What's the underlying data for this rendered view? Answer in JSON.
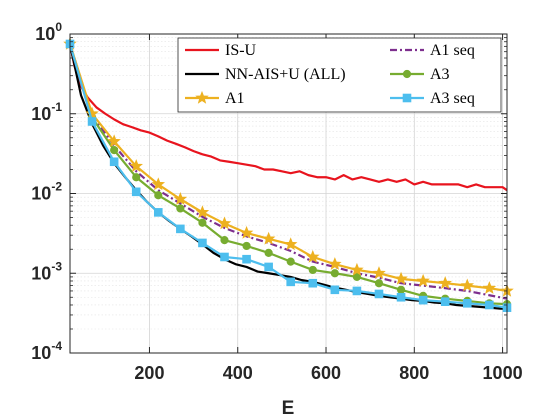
{
  "chart_data": {
    "type": "line",
    "xlabel": "E",
    "ylabel": "",
    "xlim": [
      20,
      1010
    ],
    "ylim": [
      0.0001,
      1
    ],
    "yscale": "log",
    "grid": true,
    "legend_position": "top-right",
    "x_ticks": [
      200,
      400,
      600,
      800,
      1000
    ],
    "x_tick_labels": [
      "200",
      "400",
      "600",
      "800",
      "1000"
    ],
    "y_ticks": [
      0.0001,
      0.001,
      0.01,
      0.1,
      1
    ],
    "y_tick_labels": [
      {
        "base": "10",
        "exp": "-4"
      },
      {
        "base": "10",
        "exp": "-3"
      },
      {
        "base": "10",
        "exp": "-2"
      },
      {
        "base": "10",
        "exp": "-1"
      },
      {
        "base": "10",
        "exp": "0"
      }
    ],
    "series": [
      {
        "name": "IS-U",
        "color": "#e8141e",
        "marker": "none",
        "x": [
          20,
          30,
          45,
          60,
          80,
          100,
          120,
          140,
          160,
          180,
          200,
          220,
          240,
          260,
          280,
          300,
          320,
          340,
          360,
          380,
          400,
          420,
          440,
          460,
          480,
          500,
          520,
          540,
          560,
          580,
          600,
          620,
          640,
          660,
          680,
          700,
          720,
          740,
          760,
          780,
          800,
          820,
          840,
          860,
          880,
          900,
          920,
          940,
          960,
          980,
          1000,
          1010
        ],
        "y": [
          0.75,
          0.4,
          0.22,
          0.16,
          0.12,
          0.1,
          0.085,
          0.074,
          0.068,
          0.062,
          0.058,
          0.052,
          0.046,
          0.042,
          0.038,
          0.034,
          0.031,
          0.029,
          0.026,
          0.025,
          0.024,
          0.023,
          0.022,
          0.02,
          0.02,
          0.019,
          0.018,
          0.019,
          0.017,
          0.016,
          0.016,
          0.015,
          0.017,
          0.015,
          0.016,
          0.015,
          0.014,
          0.015,
          0.014,
          0.015,
          0.013,
          0.014,
          0.013,
          0.013,
          0.013,
          0.013,
          0.012,
          0.013,
          0.012,
          0.012,
          0.012,
          0.011
        ]
      },
      {
        "name": "NN-AIS+U (ALL)",
        "color": "#000000",
        "marker": "none",
        "x": [
          20,
          45,
          70,
          95,
          120,
          145,
          170,
          195,
          220,
          245,
          270,
          295,
          320,
          345,
          370,
          395,
          420,
          445,
          470,
          495,
          520,
          545,
          570,
          595,
          620,
          645,
          670,
          695,
          720,
          745,
          770,
          795,
          820,
          845,
          870,
          895,
          920,
          945,
          970,
          995,
          1010
        ],
        "y": [
          0.75,
          0.17,
          0.075,
          0.04,
          0.024,
          0.016,
          0.011,
          0.0078,
          0.0058,
          0.0045,
          0.0036,
          0.0029,
          0.0023,
          0.0018,
          0.0015,
          0.0013,
          0.0012,
          0.00105,
          0.001,
          0.00095,
          0.0009,
          0.00082,
          0.00078,
          0.00072,
          0.00066,
          0.00062,
          0.00058,
          0.00055,
          0.00052,
          0.0005,
          0.00048,
          0.00046,
          0.00045,
          0.00043,
          0.00042,
          0.0004,
          0.00039,
          0.00038,
          0.00037,
          0.00036,
          0.00036
        ]
      },
      {
        "name": "A1",
        "color": "#edb120",
        "marker": "star",
        "x": [
          20,
          70,
          120,
          170,
          220,
          270,
          320,
          370,
          420,
          470,
          520,
          570,
          620,
          670,
          720,
          770,
          820,
          870,
          920,
          970,
          1010
        ],
        "y": [
          0.75,
          0.1,
          0.045,
          0.022,
          0.013,
          0.0085,
          0.0058,
          0.0042,
          0.0032,
          0.0027,
          0.0023,
          0.0016,
          0.0013,
          0.0011,
          0.001,
          0.00085,
          0.0008,
          0.00075,
          0.0007,
          0.00065,
          0.0006
        ]
      },
      {
        "name": "A1 seq",
        "color": "#7e2f8e",
        "marker": "none",
        "dashed": true,
        "x": [
          20,
          70,
          120,
          170,
          220,
          270,
          320,
          370,
          420,
          470,
          520,
          570,
          620,
          670,
          720,
          770,
          820,
          870,
          920,
          970,
          1010
        ],
        "y": [
          0.75,
          0.095,
          0.04,
          0.019,
          0.011,
          0.0075,
          0.0051,
          0.0037,
          0.0029,
          0.0024,
          0.0019,
          0.0014,
          0.0012,
          0.001,
          0.00088,
          0.00075,
          0.0007,
          0.00065,
          0.0006,
          0.00053,
          0.00048
        ]
      },
      {
        "name": "A3",
        "color": "#77ac30",
        "marker": "circle",
        "x": [
          20,
          70,
          120,
          170,
          220,
          270,
          320,
          370,
          420,
          470,
          520,
          570,
          620,
          670,
          720,
          770,
          820,
          870,
          920,
          970,
          1010
        ],
        "y": [
          0.75,
          0.09,
          0.035,
          0.016,
          0.0095,
          0.0065,
          0.0043,
          0.0026,
          0.0022,
          0.0018,
          0.0014,
          0.0011,
          0.001,
          0.0009,
          0.00075,
          0.00062,
          0.00052,
          0.00048,
          0.00045,
          0.00042,
          0.00041
        ]
      },
      {
        "name": "A3 seq",
        "color": "#4dbeee",
        "marker": "square",
        "x": [
          20,
          70,
          120,
          170,
          220,
          270,
          320,
          370,
          420,
          470,
          520,
          570,
          620,
          670,
          720,
          770,
          820,
          870,
          920,
          970,
          1010
        ],
        "y": [
          0.75,
          0.08,
          0.025,
          0.0105,
          0.0058,
          0.0036,
          0.0024,
          0.0016,
          0.0015,
          0.0012,
          0.00078,
          0.00075,
          0.00062,
          0.0006,
          0.00055,
          0.0005,
          0.00046,
          0.00044,
          0.00042,
          0.0004,
          0.00037
        ]
      }
    ]
  }
}
